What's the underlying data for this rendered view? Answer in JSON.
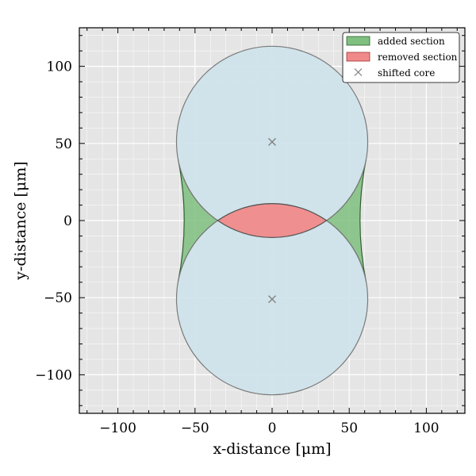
{
  "chart_data": {
    "type": "area",
    "title": "",
    "xlabel": "x-distance [μm]",
    "ylabel": "y-distance [μm]",
    "xlim": [
      -125,
      125
    ],
    "ylim": [
      -125,
      125
    ],
    "x_ticks": [
      -100,
      -50,
      0,
      50,
      100
    ],
    "y_ticks": [
      -100,
      -50,
      0,
      50,
      100
    ],
    "x_tick_labels": [
      "−100",
      "−50",
      "0",
      "50",
      "100"
    ],
    "y_tick_labels": [
      "−100",
      "−50",
      "0",
      "50",
      "100"
    ],
    "grid": true,
    "minor_grid": true,
    "legend_position": "top-right",
    "circles": [
      {
        "center": [
          0,
          51
        ],
        "radius": 62
      },
      {
        "center": [
          0,
          -51
        ],
        "radius": 62
      }
    ],
    "edge_y_limit": 40,
    "bridge_x": 57,
    "series": [
      {
        "name": "added section",
        "kind": "patch",
        "color": "#7fbf7f"
      },
      {
        "name": "removed section",
        "kind": "patch",
        "color": "#f08a8a"
      },
      {
        "name": "shifted core",
        "kind": "marker",
        "marker": "x",
        "color": "#808080",
        "points": [
          [
            0,
            51
          ],
          [
            0,
            -51
          ]
        ]
      }
    ]
  },
  "colors": {
    "background": "#e5e5e5",
    "grid": "#ffffff",
    "circle_fill": "#cde2ea",
    "circle_edge": "#7a7a7a",
    "added_edge": "#2f5f2f",
    "removed_edge": "#555555"
  }
}
